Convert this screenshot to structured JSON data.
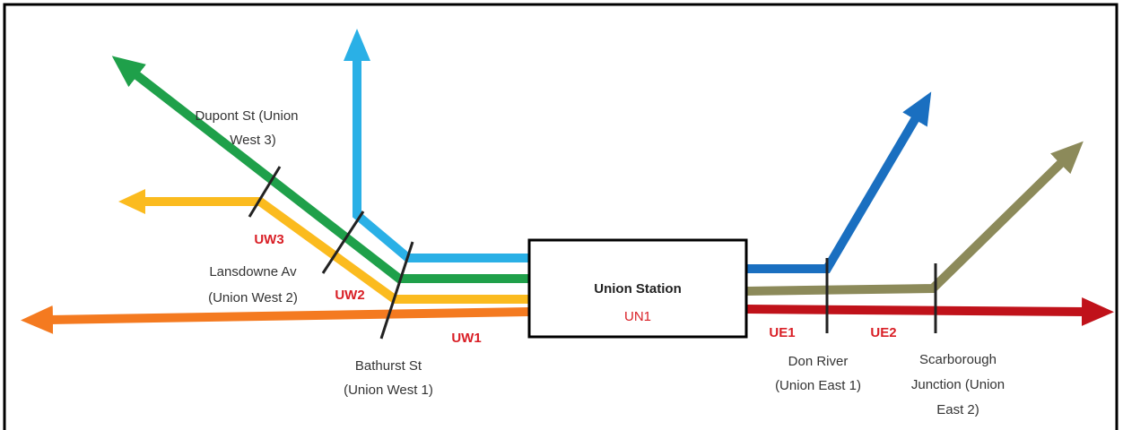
{
  "station": {
    "name": "Union Station",
    "code": "UN1"
  },
  "zones": {
    "uw1": "UW1",
    "uw2": "UW2",
    "uw3": "UW3",
    "ue1": "UE1",
    "ue2": "UE2"
  },
  "boundaries": {
    "dupont": [
      "Dupont St (Union",
      "West 3)"
    ],
    "lansdowne": [
      "Lansdowne Av",
      "(Union West 2)"
    ],
    "bathurst": [
      "Bathurst St",
      "(Union West 1)"
    ],
    "don_river": [
      "Don River",
      "(Union East 1)"
    ],
    "scarborough": [
      "Scarborough",
      "Junction (Union",
      "East 2)"
    ]
  }
}
